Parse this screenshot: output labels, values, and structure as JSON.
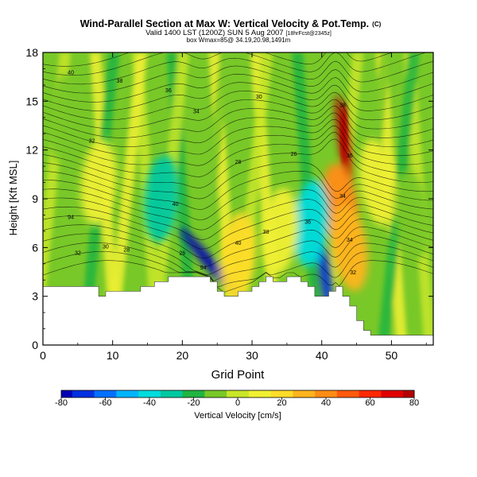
{
  "chart_data": {
    "type": "heatmap",
    "title": "Wind-Parallel Section at Max W: Vertical Velocity & Pot.Temp.",
    "title_mark": "(C)",
    "subtitle_main": "Valid 1400 LST (1200Z) SUN 5 Aug 2007",
    "subtitle_small": "[18hrFcst@2345z]",
    "subtitle2": "box Wmax=85@ 34.19,20.98,1491m",
    "xlabel": "Grid Point",
    "ylabel": "Height [Kft MSL]",
    "xlim": [
      0,
      56
    ],
    "ylim": [
      0,
      18
    ],
    "x_ticks": [
      0,
      10,
      20,
      30,
      40,
      50
    ],
    "y_ticks": [
      0,
      3,
      6,
      9,
      12,
      15,
      18
    ],
    "colorbar": {
      "label": "Vertical Velocity [cm/s]",
      "ticks": [
        -80,
        -60,
        -40,
        -20,
        0,
        20,
        40,
        60,
        80
      ],
      "stops": [
        {
          "value": -80,
          "color": "#0000b4"
        },
        {
          "value": -70,
          "color": "#0030e0"
        },
        {
          "value": -60,
          "color": "#0070ff"
        },
        {
          "value": -50,
          "color": "#00b4ff"
        },
        {
          "value": -40,
          "color": "#00dcdc"
        },
        {
          "value": -30,
          "color": "#00c8a0"
        },
        {
          "value": -20,
          "color": "#20b440"
        },
        {
          "value": -10,
          "color": "#78c828"
        },
        {
          "value": 0,
          "color": "#c8e628"
        },
        {
          "value": 10,
          "color": "#f0f032"
        },
        {
          "value": 20,
          "color": "#ffdc28"
        },
        {
          "value": 30,
          "color": "#ffb41e"
        },
        {
          "value": 40,
          "color": "#ff8c14"
        },
        {
          "value": 50,
          "color": "#ff5a0a"
        },
        {
          "value": 60,
          "color": "#ff2800"
        },
        {
          "value": 70,
          "color": "#e10000"
        },
        {
          "value": 80,
          "color": "#b40000"
        }
      ]
    },
    "terrain_profile": {
      "x": [
        0,
        2,
        8,
        9,
        12,
        14,
        16,
        18,
        20,
        22,
        24,
        25,
        26,
        28,
        30,
        31,
        32,
        33,
        34,
        35,
        36,
        37,
        38,
        39,
        40,
        41,
        42,
        43,
        44,
        45,
        46,
        47,
        50,
        56
      ],
      "z": [
        3.6,
        3.6,
        3.0,
        3.3,
        3.3,
        3.6,
        3.9,
        4.2,
        4.2,
        4.2,
        3.9,
        3.3,
        3.0,
        3.3,
        3.6,
        3.9,
        4.2,
        3.9,
        3.9,
        4.2,
        4.2,
        3.9,
        3.6,
        3.0,
        3.0,
        3.3,
        3.6,
        3.0,
        2.4,
        1.5,
        0.9,
        0.6,
        0.6,
        0.6
      ]
    },
    "vertical_velocity_features": [
      {
        "x": 43.2,
        "z": 12.5,
        "value": 85
      },
      {
        "x": 42.7,
        "z": 8.5,
        "value": 40
      },
      {
        "x": 44.0,
        "z": 6.0,
        "value": 30
      },
      {
        "x": 24.0,
        "z": 5.0,
        "value": -80
      },
      {
        "x": 40.5,
        "z": 4.2,
        "value": -70
      },
      {
        "x": 38.5,
        "z": 7.5,
        "value": -40
      },
      {
        "x": 17.0,
        "z": 9.0,
        "value": -25
      },
      {
        "x": 8.0,
        "z": 10.0,
        "value": 10
      },
      {
        "x": 28.0,
        "z": 5.5,
        "value": 20
      },
      {
        "x": 34.0,
        "z": 7.0,
        "value": 15
      },
      {
        "x": 48.0,
        "z": 10.0,
        "value": 10
      },
      {
        "x": 53.0,
        "z": 8.0,
        "value": -10
      },
      {
        "x": 3.0,
        "z": 14.0,
        "value": -10
      }
    ],
    "contour_labels": [
      "40",
      "38",
      "36",
      "34",
      "32",
      "30",
      "28",
      "26",
      "94"
    ]
  }
}
